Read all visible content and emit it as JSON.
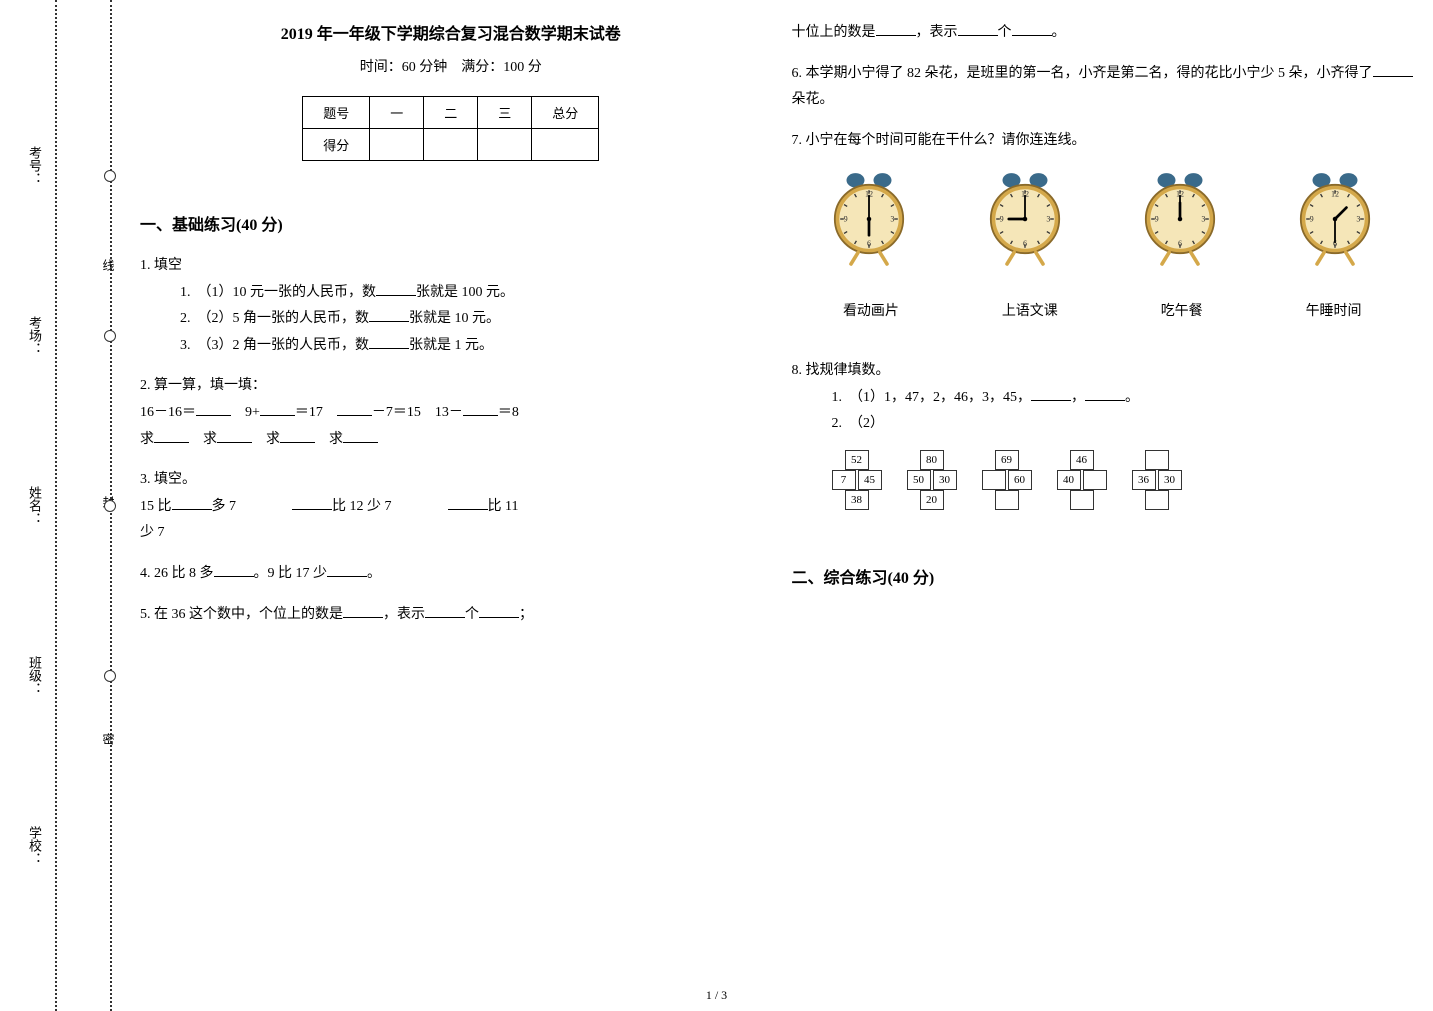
{
  "sidebar": {
    "labels": [
      "考号：",
      "考场：",
      "姓名：",
      "班级：",
      "学校："
    ],
    "seals": [
      "线",
      "封",
      "密"
    ]
  },
  "header": {
    "title": "2019 年一年级下学期综合复习混合数学期末试卷",
    "time_label": "时间：60 分钟　满分：100 分"
  },
  "score_table": {
    "row1": [
      "题号",
      "一",
      "二",
      "三",
      "总分"
    ],
    "row2_label": "得分"
  },
  "section1": {
    "title": "一、基础练习(40 分)",
    "q1": {
      "stem": "1.  填空",
      "sub1": "1.　（1）10 元一张的人民币，数",
      "sub1_tail": "张就是 100 元。",
      "sub2": "2.　（2）5 角一张的人民币，数",
      "sub2_tail": "张就是 10 元。",
      "sub3": "3.　（3）2 角一张的人民币，数",
      "sub3_tail": "张就是 1 元。"
    },
    "q2": {
      "stem": "2.  算一算，填一填：",
      "expr1_a": "16－16＝",
      "expr2_a": "9+",
      "expr2_b": "＝17",
      "expr3_b": "－7＝15",
      "expr4_a": "13－",
      "expr4_b": "＝8",
      "seek_a": "求",
      "seek_b": "求",
      "seek_c": "求",
      "seek_d": "求"
    },
    "q3": {
      "stem": "3.  填空。",
      "line1_a": "15 比",
      "line1_b": "多 7",
      "line1_c": "比 12 少 7",
      "line1_d": "比 11",
      "line2": "少 7"
    },
    "q4": {
      "a": "4.  26 比 8 多",
      "b": "。9 比 17 少",
      "c": "。"
    },
    "q5": {
      "a": "5.  在 36 这个数中，个位上的数是",
      "b": "，表示",
      "c": "个",
      "d": "；",
      "cont_a": "十位上的数是",
      "cont_b": "，表示",
      "cont_c": "个",
      "cont_d": "。"
    },
    "q6": {
      "a": "6.  本学期小宁得了 82 朵花，是班里的第一名，小齐是第二名，得的花比小宁少 5 朵，小齐得了",
      "b": "朵花。"
    },
    "q7": {
      "stem": "7.  小宁在每个时间可能在干什么？请你连连线。",
      "activities": [
        "看动画片",
        "上语文课",
        "吃午餐",
        "午睡时间"
      ],
      "clocks": [
        {
          "hour": 6,
          "minute": 0
        },
        {
          "hour": 9,
          "minute": 0
        },
        {
          "hour": 12,
          "minute": 0
        },
        {
          "hour": 1,
          "minute": 30
        }
      ]
    },
    "q8": {
      "stem": "8.  找规律填数。",
      "sub1_a": "1.　（1）1，47，2，46，3，45，",
      "sub1_b": "，",
      "sub1_c": "。",
      "sub2": "2.　（2）",
      "boxes": [
        {
          "top": [
            "52"
          ],
          "mid": [
            "7",
            "45"
          ],
          "bot": [
            "38"
          ]
        },
        {
          "top": [
            "80"
          ],
          "mid": [
            "50",
            "30"
          ],
          "bot": [
            "20"
          ]
        },
        {
          "top": [
            "69"
          ],
          "mid": [
            "",
            "60"
          ],
          "bot": [
            ""
          ]
        },
        {
          "top": [
            "46"
          ],
          "mid": [
            "40",
            ""
          ],
          "bot": [
            ""
          ]
        },
        {
          "top": [
            ""
          ],
          "mid": [
            "36",
            "30"
          ],
          "bot": [
            ""
          ]
        }
      ]
    }
  },
  "section2": {
    "title": "二、综合练习(40 分)"
  },
  "page_num": "1 / 3",
  "clock_style": {
    "rim_fill": "#d4a84a",
    "face_fill": "#f5e6b8",
    "bell_fill": "#3a6a8a"
  }
}
